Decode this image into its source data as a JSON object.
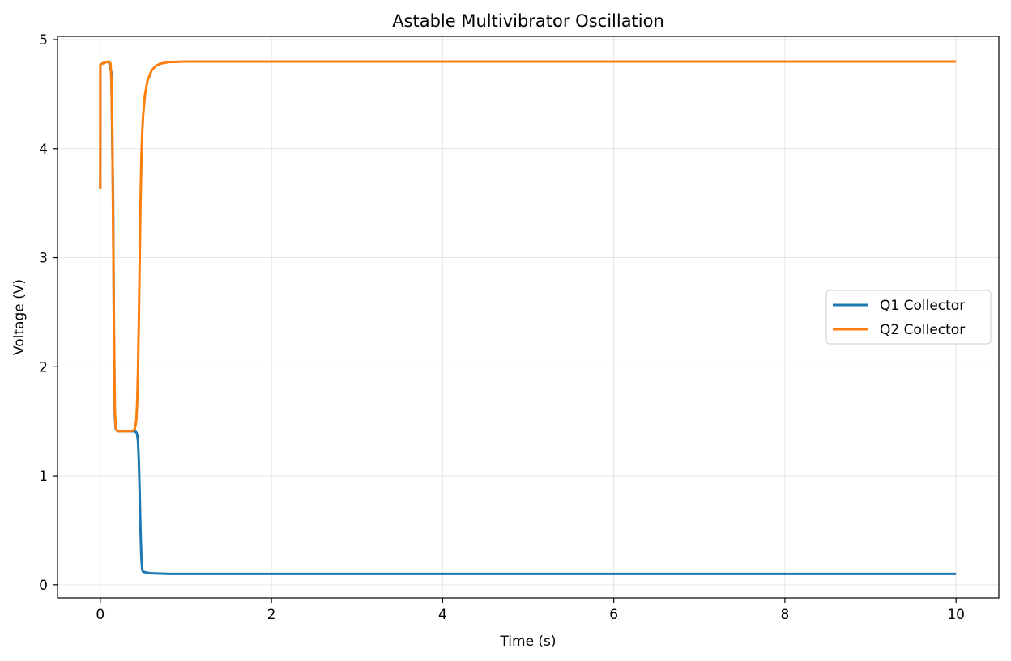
{
  "chart_data": {
    "type": "line",
    "title": "Astable Multivibrator Oscillation",
    "xlabel": "Time (s)",
    "ylabel": "Voltage (V)",
    "xlim": [
      -0.5,
      10.5
    ],
    "ylim": [
      -0.12,
      5.03
    ],
    "xticks": [
      0,
      2,
      4,
      6,
      8,
      10
    ],
    "yticks": [
      0,
      1,
      2,
      3,
      4,
      5
    ],
    "grid": true,
    "legend_position": "center-right",
    "series": [
      {
        "name": "Q1 Collector",
        "color": "#1f77b4",
        "x": [
          0,
          0.001,
          0.02,
          0.05,
          0.1,
          0.13,
          0.15,
          0.16,
          0.17,
          0.18,
          0.2,
          0.25,
          0.3,
          0.35,
          0.4,
          0.42,
          0.43,
          0.44,
          0.45,
          0.46,
          0.47,
          0.48,
          0.49,
          0.5,
          0.55,
          0.6,
          0.8,
          1,
          2,
          4,
          6,
          8,
          10
        ],
        "y": [
          3.63,
          4.77,
          4.78,
          4.79,
          4.8,
          4.7,
          3.5,
          2.2,
          1.55,
          1.43,
          1.41,
          1.41,
          1.41,
          1.41,
          1.41,
          1.4,
          1.38,
          1.32,
          1.15,
          0.85,
          0.5,
          0.25,
          0.14,
          0.12,
          0.11,
          0.105,
          0.1,
          0.1,
          0.1,
          0.1,
          0.1,
          0.1,
          0.1
        ]
      },
      {
        "name": "Q2 Collector",
        "color": "#ff7f0e",
        "x": [
          0,
          0.001,
          0.02,
          0.05,
          0.1,
          0.12,
          0.13,
          0.14,
          0.15,
          0.16,
          0.17,
          0.18,
          0.2,
          0.25,
          0.3,
          0.35,
          0.4,
          0.42,
          0.43,
          0.44,
          0.45,
          0.46,
          0.47,
          0.48,
          0.49,
          0.5,
          0.52,
          0.55,
          0.6,
          0.65,
          0.7,
          0.8,
          1,
          2,
          4,
          6,
          8,
          10
        ],
        "y": [
          3.63,
          4.77,
          4.78,
          4.79,
          4.8,
          4.78,
          4.62,
          4.2,
          3.3,
          2.3,
          1.6,
          1.44,
          1.41,
          1.41,
          1.41,
          1.41,
          1.42,
          1.5,
          1.65,
          1.95,
          2.4,
          2.95,
          3.5,
          3.9,
          4.15,
          4.3,
          4.48,
          4.62,
          4.72,
          4.76,
          4.78,
          4.795,
          4.8,
          4.8,
          4.8,
          4.8,
          4.8,
          4.8
        ]
      }
    ]
  }
}
